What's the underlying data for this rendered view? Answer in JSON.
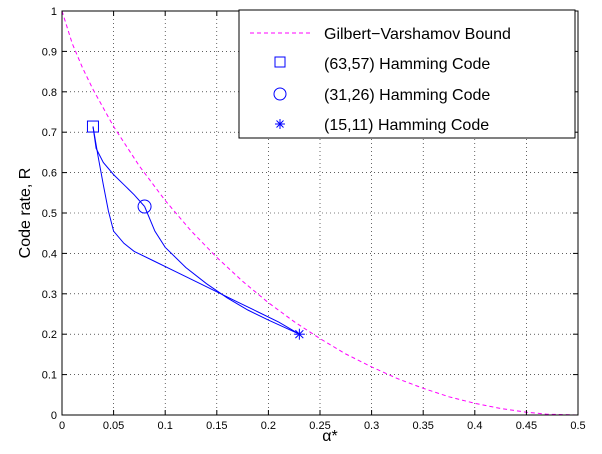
{
  "chart_data": {
    "type": "line",
    "title": "",
    "xlabel": "α*",
    "ylabel": "Code rate, R",
    "xlim": [
      0,
      0.5
    ],
    "ylim": [
      0,
      1
    ],
    "xticks": [
      "0",
      "0.05",
      "0.1",
      "0.15",
      "0.2",
      "0.25",
      "0.3",
      "0.35",
      "0.4",
      "0.45",
      "0.5"
    ],
    "yticks": [
      "0",
      "0.1",
      "0.2",
      "0.3",
      "0.4",
      "0.5",
      "0.6",
      "0.7",
      "0.8",
      "0.9",
      "1"
    ],
    "grid": true,
    "legend_position": "top-right",
    "colors": {
      "gv_bound": "#ff00ff",
      "codes": "#0000ff"
    },
    "series": [
      {
        "name": "Gilbert−Varshamov Bound",
        "style": "dashed",
        "color": "#ff00ff",
        "x": [
          0,
          0.01,
          0.02,
          0.03,
          0.05,
          0.075,
          0.1,
          0.125,
          0.15,
          0.175,
          0.2,
          0.225,
          0.25,
          0.275,
          0.3,
          0.325,
          0.35,
          0.375,
          0.4,
          0.425,
          0.45,
          0.47,
          0.5
        ],
        "y": [
          1,
          0.919,
          0.859,
          0.806,
          0.714,
          0.616,
          0.531,
          0.456,
          0.39,
          0.331,
          0.278,
          0.231,
          0.189,
          0.151,
          0.119,
          0.09,
          0.066,
          0.045,
          0.029,
          0.016,
          0.007,
          0.002,
          0
        ]
      },
      {
        "name": "(63,57) Hamming Code",
        "marker": "square",
        "color": "#0000ff",
        "x": [
          0.03
        ],
        "y": [
          0.714
        ]
      },
      {
        "name": "(31,26) Hamming Code",
        "marker": "circle",
        "color": "#0000ff",
        "x": [
          0.08
        ],
        "y": [
          0.516
        ]
      },
      {
        "name": "(15,11) Hamming Code",
        "marker": "asterisk",
        "color": "#0000ff",
        "x": [
          0.23
        ],
        "y": [
          0.2
        ]
      }
    ],
    "connecting_curves": [
      {
        "from": "(63,57) Hamming Code",
        "to": "(31,26) Hamming Code",
        "x": [
          0.03,
          0.033,
          0.04,
          0.05,
          0.06,
          0.07,
          0.08
        ],
        "y": [
          0.714,
          0.66,
          0.625,
          0.595,
          0.57,
          0.545,
          0.516
        ]
      },
      {
        "from": "(31,26) Hamming Code",
        "to": "(15,11) Hamming Code",
        "x": [
          0.08,
          0.09,
          0.1,
          0.12,
          0.14,
          0.16,
          0.18,
          0.2,
          0.23
        ],
        "y": [
          0.516,
          0.455,
          0.415,
          0.365,
          0.325,
          0.29,
          0.26,
          0.235,
          0.2
        ]
      },
      {
        "from": "(63,57) Hamming Code",
        "to": "(15,11) Hamming Code",
        "x": [
          0.03,
          0.035,
          0.04,
          0.045,
          0.05,
          0.06,
          0.07,
          0.09,
          0.11,
          0.13,
          0.15,
          0.17,
          0.19,
          0.21,
          0.23
        ],
        "y": [
          0.714,
          0.64,
          0.57,
          0.505,
          0.455,
          0.425,
          0.405,
          0.38,
          0.355,
          0.33,
          0.305,
          0.28,
          0.255,
          0.23,
          0.2
        ]
      }
    ]
  }
}
